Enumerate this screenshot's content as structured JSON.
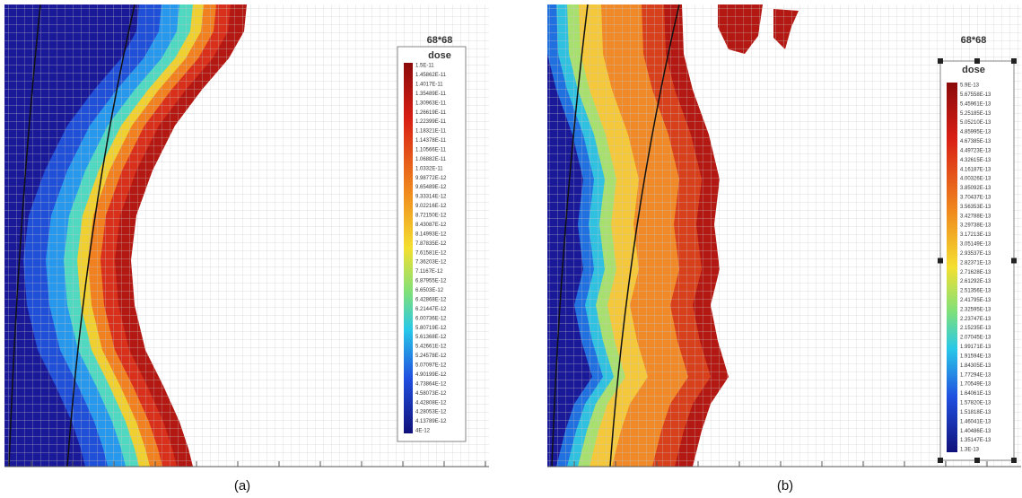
{
  "panels": [
    {
      "caption": "(a)",
      "grid_title": "68*68",
      "legend_title": "dose",
      "legend_labels": [
        "1.5E-11",
        "1.45862E-11",
        "1.4017E-11",
        "1.35489E-11",
        "1.30963E-11",
        "1.26619E-11",
        "1.22399E-11",
        "1.18321E-11",
        "1.14378E-11",
        "1.10566E-11",
        "1.06882E-11",
        "1.0332E-11",
        "9.98772E-12",
        "9.65489E-12",
        "9.33314E-12",
        "9.02216E-12",
        "8.72150E-12",
        "8.43087E-12",
        "8.14993E-12",
        "7.87835E-12",
        "7.61581E-12",
        "7.36203E-12",
        "7.1167E-12",
        "6.87955E-12",
        "6.6503E-12",
        "6.42868E-12",
        "6.21447E-12",
        "6.00736E-12",
        "5.80719E-12",
        "5.61368E-12",
        "5.42661E-12",
        "5.24578E-12",
        "5.07097E-12",
        "4.90199E-12",
        "4.73864E-12",
        "4.58073E-12",
        "4.42808E-12",
        "4.28053E-12",
        "4.13789E-12",
        "4E-12"
      ]
    },
    {
      "caption": "(b)",
      "grid_title": "68*68",
      "legend_title": "dose",
      "legend_labels": [
        "5.9E-13",
        "5.67558E-13",
        "5.45961E-13",
        "5.25185E-13",
        "5.05210E-13",
        "4.85995E-13",
        "4.67385E-13",
        "4.49723E-13",
        "4.32615E-13",
        "4.16187E-13",
        "4.00326E-13",
        "3.85092E-13",
        "3.70437E-13",
        "3.56353E-13",
        "3.42788E-13",
        "3.29738E-13",
        "3.17213E-13",
        "3.05149E-13",
        "2.93537E-13",
        "2.82371E-13",
        "2.71628E-13",
        "2.61292E-13",
        "2.51356E-13",
        "2.41795E-13",
        "2.32595E-13",
        "2.23747E-13",
        "2.15235E-13",
        "2.07045E-13",
        "1.99171E-13",
        "1.91594E-13",
        "1.84305E-13",
        "1.77294E-13",
        "1.70549E-13",
        "1.64061E-13",
        "1.57820E-13",
        "1.51818E-13",
        "1.46041E-13",
        "1.40486E-13",
        "1.35147E-13",
        "1.3E-13"
      ]
    }
  ]
}
